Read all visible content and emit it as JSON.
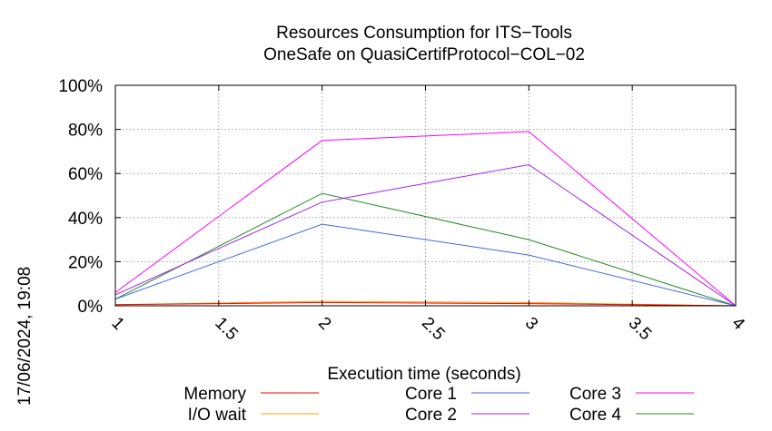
{
  "chart_data": {
    "type": "line",
    "title": "Resources Consumption for ITS−Tools",
    "subtitle": "OneSafe on QuasiCertifProtocol−COL−02",
    "xlabel": "Execution time (seconds)",
    "ylabel": "",
    "timestamp": "17/06/2024, 19:08",
    "xlim": [
      1,
      4
    ],
    "ylim": [
      0,
      100
    ],
    "x_ticks": [
      1,
      1.5,
      2,
      2.5,
      3,
      3.5,
      4
    ],
    "x_tick_labels": [
      "1",
      "1.5",
      "2",
      "2.5",
      "3",
      "3.5",
      "4"
    ],
    "y_ticks": [
      0,
      20,
      40,
      60,
      80,
      100
    ],
    "y_tick_labels": [
      "0%",
      "20%",
      "40%",
      "60%",
      "80%",
      "100%"
    ],
    "grid": true,
    "legend_position": "bottom",
    "x": [
      1,
      2,
      3,
      4
    ],
    "series": [
      {
        "name": "Memory",
        "color": "#ff0000",
        "values": [
          0.5,
          1.5,
          1.0,
          0
        ]
      },
      {
        "name": "I/O wait",
        "color": "#ffa500",
        "values": [
          0.5,
          2.0,
          1.5,
          0
        ]
      },
      {
        "name": "Core 1",
        "color": "#4169e1",
        "values": [
          3,
          37,
          23,
          0
        ]
      },
      {
        "name": "Core 2",
        "color": "#a020f0",
        "values": [
          5,
          47,
          64,
          0
        ]
      },
      {
        "name": "Core 3",
        "color": "#ff00ff",
        "values": [
          6,
          75,
          79,
          0
        ]
      },
      {
        "name": "Core 4",
        "color": "#228b22",
        "values": [
          3,
          51,
          30,
          0
        ]
      }
    ]
  }
}
